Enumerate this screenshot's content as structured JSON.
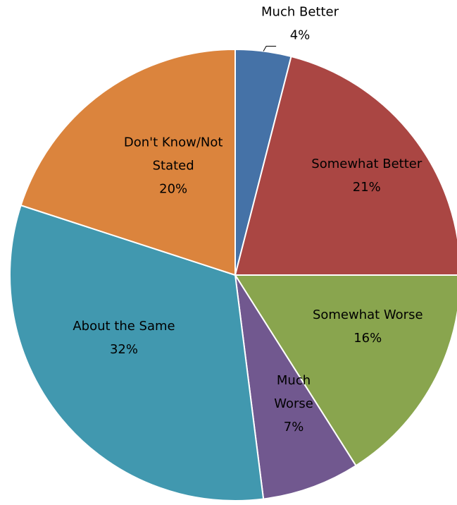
{
  "chart_data": {
    "type": "pie",
    "title": "",
    "start_angle_deg": 0,
    "direction": "clockwise",
    "slices": [
      {
        "name": "Much Better",
        "value": 4,
        "label_lines": [
          "Much Better"
        ],
        "value_label": "4%",
        "color": "#4572A7"
      },
      {
        "name": "Somewhat Better",
        "value": 21,
        "label_lines": [
          "Somewhat Better"
        ],
        "value_label": "21%",
        "color": "#AA4643"
      },
      {
        "name": "Somewhat Worse",
        "value": 16,
        "label_lines": [
          "Somewhat Worse"
        ],
        "value_label": "16%",
        "color": "#89A54E"
      },
      {
        "name": "Much Worse",
        "value": 7,
        "label_lines": [
          "Much",
          "Worse"
        ],
        "value_label": "7%",
        "color": "#71588F"
      },
      {
        "name": "About the Same",
        "value": 32,
        "label_lines": [
          "About the Same"
        ],
        "value_label": "32%",
        "color": "#4198AF"
      },
      {
        "name": "Don't Know/Not Stated",
        "value": 20,
        "label_lines": [
          "Don't Know/Not",
          "Stated"
        ],
        "value_label": "20%",
        "color": "#DB843D"
      }
    ]
  }
}
